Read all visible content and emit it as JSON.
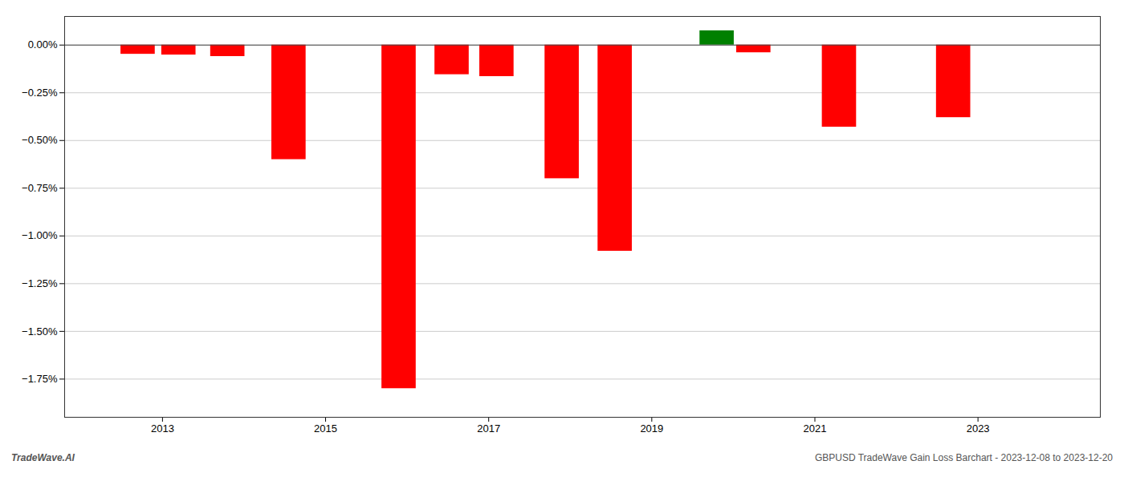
{
  "chart_data": {
    "type": "bar",
    "x": [
      2012.7,
      2013.2,
      2013.8,
      2014.55,
      2015.9,
      2016.55,
      2017.1,
      2017.9,
      2018.55,
      2019.8,
      2020.25,
      2021.3,
      2022.7
    ],
    "values": [
      -0.048,
      -0.052,
      -0.06,
      -0.6,
      -1.8,
      -0.155,
      -0.165,
      -0.7,
      -1.08,
      0.075,
      -0.04,
      -0.43,
      -0.38
    ],
    "colors": [
      "#ff0000",
      "#ff0000",
      "#ff0000",
      "#ff0000",
      "#ff0000",
      "#ff0000",
      "#ff0000",
      "#ff0000",
      "#ff0000",
      "#008000",
      "#ff0000",
      "#ff0000",
      "#ff0000"
    ],
    "xlim": [
      2011.8,
      2024.5
    ],
    "xticks": [
      2013,
      2015,
      2017,
      2019,
      2021,
      2023
    ],
    "ylim": [
      -1.95,
      0.15
    ],
    "yticks": [
      {
        "value": 0.0,
        "label": "0.00%"
      },
      {
        "value": -0.25,
        "label": "−0.25%"
      },
      {
        "value": -0.5,
        "label": "−0.50%"
      },
      {
        "value": -0.75,
        "label": "−0.75%"
      },
      {
        "value": -1.0,
        "label": "−1.00%"
      },
      {
        "value": -1.25,
        "label": "−1.25%"
      },
      {
        "value": -1.5,
        "label": "−1.50%"
      },
      {
        "value": -1.75,
        "label": "−1.75%"
      }
    ],
    "grid": true,
    "annotations": [
      "TradeWave.AI",
      "GBPUSD TradeWave Gain Loss Barchart - 2023-12-08 to 2023-12-20"
    ]
  }
}
